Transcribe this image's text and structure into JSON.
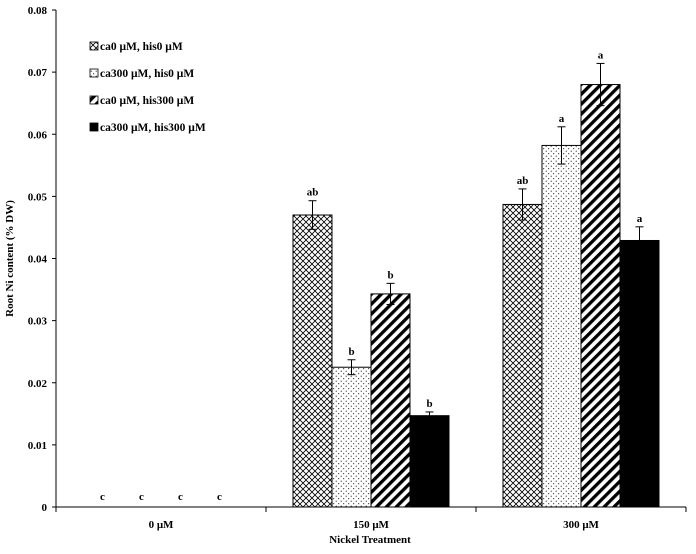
{
  "chart_data": {
    "type": "bar",
    "title": "",
    "xlabel": "Nickel Treatment",
    "ylabel": "Root Ni content (% DW)",
    "ylim": [
      0,
      0.08
    ],
    "yticks": [
      "0",
      "0.01",
      "0.02",
      "0.03",
      "0.04",
      "0.05",
      "0.06",
      "0.07",
      "0.08"
    ],
    "yticks_values": [
      0,
      0.01,
      0.02,
      0.03,
      0.04,
      0.05,
      0.06,
      0.07,
      0.08
    ],
    "categories": [
      "0 μM",
      "150 μM",
      "300 μM"
    ],
    "legend_position": "top-left",
    "grid": false,
    "series": [
      {
        "name": "ca0 μM, his0 μM",
        "pattern": "crosshatch",
        "values": [
          0,
          0.047,
          0.0487
        ],
        "errors": [
          0,
          0.0023,
          0.0025
        ],
        "labels": [
          "c",
          "ab",
          "ab"
        ]
      },
      {
        "name": "ca300 μM, his0 μM",
        "pattern": "dots",
        "values": [
          0,
          0.0225,
          0.0582
        ],
        "errors": [
          0,
          0.0012,
          0.003
        ],
        "labels": [
          "c",
          "b",
          "a"
        ]
      },
      {
        "name": "ca0 μM, his300 μM",
        "pattern": "diagonal",
        "values": [
          0,
          0.0343,
          0.068
        ],
        "errors": [
          0,
          0.0017,
          0.0034
        ],
        "labels": [
          "c",
          "b",
          "a"
        ]
      },
      {
        "name": "ca300 μM, his300 μM",
        "pattern": "solid",
        "values": [
          0,
          0.0147,
          0.0429
        ],
        "errors": [
          0,
          0.0006,
          0.0022
        ],
        "labels": [
          "c",
          "b",
          "a"
        ]
      }
    ],
    "colors": {
      "axis": "#000000",
      "fill_solid": "#000000",
      "background": "#ffffff"
    }
  }
}
